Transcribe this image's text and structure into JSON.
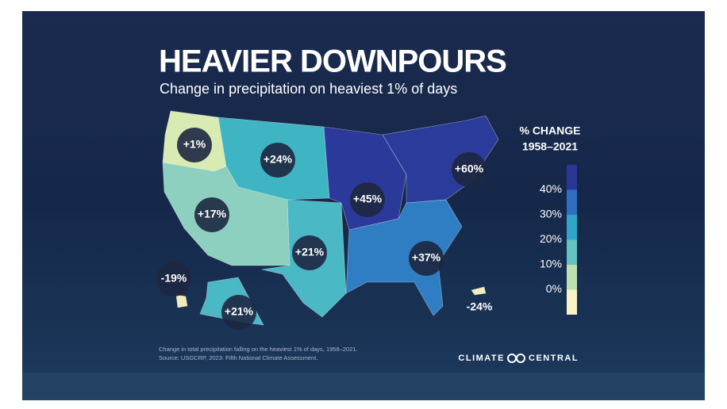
{
  "header": {
    "title": "HEAVIER DOWNPOURS",
    "subtitle": "Change in precipitation on heaviest 1% of days"
  },
  "regions": [
    {
      "label": "+1%",
      "color": "#d8ebb3"
    },
    {
      "label": "+24%",
      "color": "#3fb5c4"
    },
    {
      "label": "+17%",
      "color": "#8dd0bf"
    },
    {
      "label": "+21%",
      "color": "#4bb8c6"
    },
    {
      "label": "+45%",
      "color": "#2b3a9a"
    },
    {
      "label": "+60%",
      "color": "#2a3b9c"
    },
    {
      "label": "+37%",
      "color": "#2f7ec3"
    },
    {
      "label": "+21%",
      "color": "#4bb8c6"
    },
    {
      "label": "-19%",
      "color": "#f4ecbd"
    },
    {
      "label": "-24%",
      "color": "#f4ecbd"
    }
  ],
  "legend": {
    "title_line1": "% CHANGE",
    "title_line2": "1958–2021",
    "items": [
      {
        "label": "40%",
        "color": "#2b3796"
      },
      {
        "label": "30%",
        "color": "#2f6fbf"
      },
      {
        "label": "20%",
        "color": "#2fa6c7"
      },
      {
        "label": "10%",
        "color": "#62c2bf"
      },
      {
        "label": "0%",
        "color": "#bde0ae"
      }
    ],
    "base_color": "#fbf3c8"
  },
  "footnote": {
    "line1": "Change in total precipitation falling on the heaviest 1% of days, 1958–2021.",
    "line2": "Source: USGCRP, 2023: Fifth National Climate Assessment."
  },
  "brand": {
    "left": "CLIMATE",
    "right": "CENTRAL"
  }
}
